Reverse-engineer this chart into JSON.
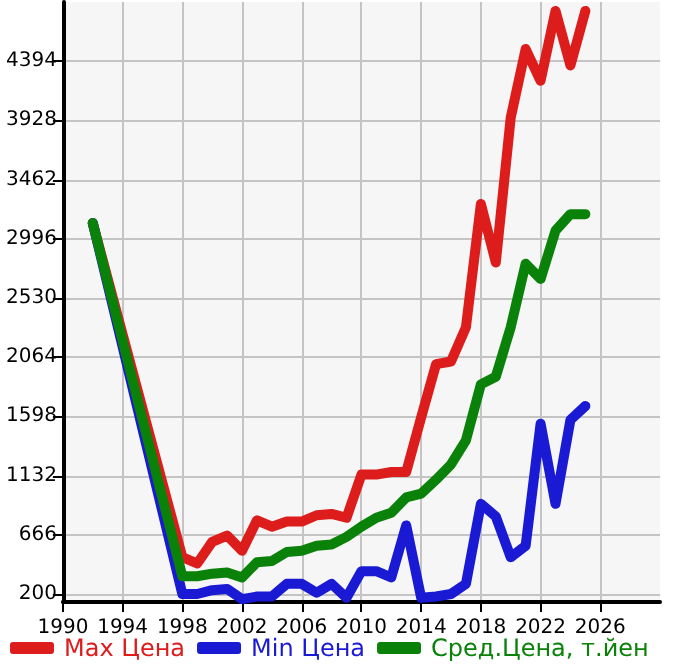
{
  "chart_data": {
    "type": "line",
    "x": [
      1992,
      1998,
      1999,
      2000,
      2001,
      2002,
      2003,
      2004,
      2005,
      2006,
      2007,
      2008,
      2009,
      2010,
      2011,
      2012,
      2013,
      2014,
      2015,
      2016,
      2017,
      2018,
      2019,
      2020,
      2021,
      2022,
      2023,
      2024,
      2025
    ],
    "series": [
      {
        "name": "Max Цена",
        "color": "#dd1c1c",
        "values": [
          3120,
          490,
          440,
          610,
          660,
          540,
          780,
          730,
          770,
          770,
          820,
          830,
          800,
          1140,
          1140,
          1160,
          1160,
          1590,
          2010,
          2030,
          2300,
          3270,
          2810,
          3950,
          4490,
          4240,
          4790,
          4360,
          4790
        ]
      },
      {
        "name": "Min Цена",
        "color": "#1a1ad4",
        "values": [
          3120,
          200,
          200,
          230,
          240,
          160,
          180,
          180,
          280,
          280,
          210,
          280,
          170,
          380,
          380,
          330,
          740,
          170,
          180,
          200,
          280,
          910,
          810,
          490,
          580,
          1540,
          910,
          1570,
          1680
        ]
      },
      {
        "name": "Сред.Цена, т.йен",
        "color": "#0a820a",
        "values": [
          3120,
          340,
          340,
          360,
          370,
          330,
          450,
          460,
          530,
          540,
          580,
          590,
          650,
          730,
          800,
          840,
          960,
          990,
          1100,
          1220,
          1410,
          1850,
          1910,
          2300,
          2800,
          2680,
          3060,
          3190,
          3190
        ]
      }
    ],
    "xlim": [
      1990,
      2030
    ],
    "xticks": [
      1990,
      1994,
      1998,
      2002,
      2006,
      2010,
      2014,
      2018,
      2022,
      2026
    ],
    "ylim": [
      137,
      4860
    ],
    "yticks": [
      200,
      666,
      1132,
      1598,
      2064,
      2530,
      2996,
      3462,
      3928,
      4394
    ],
    "grid": true,
    "legend": "bottom",
    "marker": "none",
    "line_style": "solid"
  }
}
